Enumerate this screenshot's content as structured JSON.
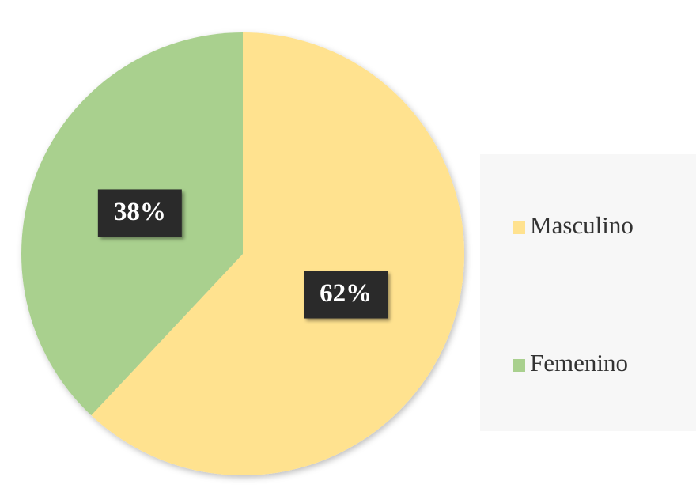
{
  "chart_data": {
    "type": "pie",
    "categories": [
      "Masculino",
      "Femenino"
    ],
    "values": [
      62,
      38
    ],
    "value_labels": [
      "62%",
      "38%"
    ],
    "colors": [
      "#FFE28F",
      "#A9D08E"
    ],
    "legend": "right"
  }
}
